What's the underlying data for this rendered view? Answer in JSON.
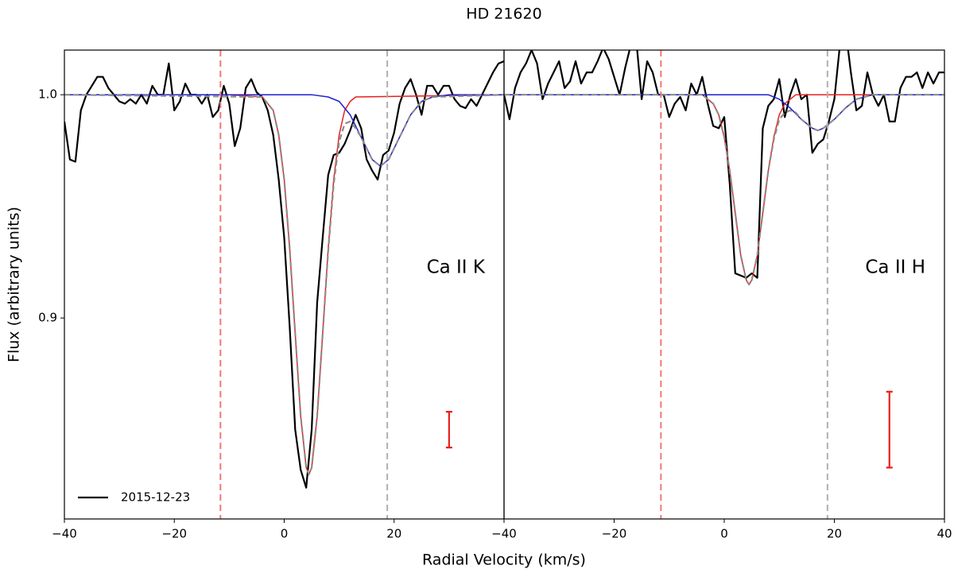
{
  "title": "HD 21620",
  "xlabel": "Radial Velocity (km/s)",
  "ylabel": "Flux (arbitrary units)",
  "chart_data": [
    {
      "type": "line",
      "annotation": "Ca II K",
      "legend": "lower left",
      "xlim": [
        -40,
        40
      ],
      "ylim": [
        0.81,
        1.02
      ],
      "xticks": [
        {
          "value": -40,
          "label": "−40"
        },
        {
          "value": -20,
          "label": "−20"
        },
        0,
        20
      ],
      "yticks": [
        0.9,
        {
          "value": 1,
          "label": "1.0"
        }
      ],
      "vlines": [
        {
          "x": -11.6,
          "color": "#f07878"
        },
        {
          "x": 18.75,
          "color": "#b0b0b0"
        }
      ],
      "errorbar": {
        "x": 30,
        "y": 0.85,
        "err": 0.008,
        "color": "#e8201e"
      },
      "series": [
        {
          "name": "2015-12-23",
          "color": "#000000",
          "width": 2.2,
          "dash": false,
          "x": [
            -40,
            -39,
            -38,
            -37,
            -36,
            -35,
            -34,
            -33,
            -32,
            -31,
            -30,
            -29,
            -28,
            -27,
            -26,
            -25,
            -24,
            -23,
            -22,
            -21,
            -20,
            -19,
            -18,
            -17,
            -16,
            -15,
            -14,
            -13,
            -12,
            -11,
            -10,
            -9,
            -8,
            -7,
            -6,
            -5,
            -4,
            -3,
            -2,
            -1,
            0,
            1,
            2,
            3,
            4,
            5,
            6,
            7,
            8,
            9,
            10,
            11,
            12,
            13,
            14,
            15,
            16,
            17,
            18,
            19,
            20,
            21,
            22,
            23,
            24,
            25,
            26,
            27,
            28,
            29,
            30,
            31,
            32,
            33,
            34,
            35,
            36,
            37,
            38,
            39,
            40
          ],
          "values": [
            0.988,
            0.971,
            0.97,
            0.993,
            1.0,
            1.004,
            1.008,
            1.008,
            1.003,
            1.0,
            0.997,
            0.996,
            0.998,
            0.996,
            1.0,
            0.996,
            1.004,
            1.0,
            1.0,
            1.014,
            0.993,
            0.997,
            1.005,
            1.0,
            1.0,
            0.996,
            1.0,
            0.99,
            0.993,
            1.004,
            0.996,
            0.977,
            0.985,
            1.003,
            1.007,
            1.001,
            0.999,
            0.993,
            0.982,
            0.962,
            0.936,
            0.896,
            0.85,
            0.832,
            0.824,
            0.85,
            0.907,
            0.936,
            0.964,
            0.973,
            0.974,
            0.978,
            0.984,
            0.991,
            0.985,
            0.971,
            0.966,
            0.962,
            0.973,
            0.975,
            0.983,
            0.996,
            1.003,
            1.007,
            1.0,
            0.991,
            1.004,
            1.004,
            1.0,
            1.004,
            1.004,
            0.998,
            0.995,
            0.994,
            0.998,
            0.995,
            1.0,
            1.005,
            1.01,
            1.014,
            1.015
          ]
        },
        {
          "color": "#e8201e",
          "width": 1.5,
          "dash": false,
          "x": [
            -40,
            -10,
            -4,
            -2,
            -1,
            0,
            1,
            2,
            3,
            4,
            4.5,
            5,
            6,
            7,
            8,
            9,
            10,
            11,
            12,
            13,
            40
          ],
          "values": [
            1.0,
            1.0,
            0.999,
            0.993,
            0.982,
            0.962,
            0.931,
            0.893,
            0.856,
            0.833,
            0.83,
            0.833,
            0.856,
            0.893,
            0.931,
            0.962,
            0.982,
            0.993,
            0.997,
            0.999,
            1.0
          ]
        },
        {
          "color": "#1f1fd0",
          "width": 1.5,
          "dash": false,
          "x": [
            -40,
            5,
            8,
            10,
            12,
            14,
            16,
            17.5,
            19,
            21,
            23,
            25,
            27,
            30,
            40
          ],
          "values": [
            1.0,
            1.0,
            0.999,
            0.997,
            0.991,
            0.981,
            0.971,
            0.968,
            0.971,
            0.981,
            0.991,
            0.997,
            0.999,
            1.0,
            1.0
          ]
        },
        {
          "color": "#8c8c8c",
          "width": 2.2,
          "dash": true,
          "x": [
            -40,
            -4,
            -2,
            -1,
            0,
            1,
            2,
            3,
            4,
            4.5,
            5,
            6,
            7,
            8,
            9,
            10,
            11,
            12,
            13,
            14,
            16,
            17.5,
            19,
            21,
            23,
            25,
            27,
            40
          ],
          "values": [
            1.0,
            0.999,
            0.993,
            0.982,
            0.962,
            0.931,
            0.893,
            0.856,
            0.833,
            0.83,
            0.833,
            0.856,
            0.893,
            0.93,
            0.96,
            0.979,
            0.987,
            0.988,
            0.985,
            0.981,
            0.971,
            0.968,
            0.971,
            0.981,
            0.991,
            0.997,
            0.999,
            1.0
          ]
        }
      ]
    },
    {
      "type": "line",
      "annotation": "Ca II H",
      "xlim": [
        -40,
        40
      ],
      "ylim": [
        0.81,
        1.02
      ],
      "xticks": [
        {
          "value": -40,
          "label": "−40"
        },
        {
          "value": -20,
          "label": "−20"
        },
        0,
        20,
        40
      ],
      "vlines": [
        {
          "x": -11.5,
          "color": "#f07878"
        },
        {
          "x": 18.75,
          "color": "#b0b0b0"
        }
      ],
      "errorbar": {
        "x": 30,
        "y": 0.85,
        "err": 0.017,
        "color": "#e8201e"
      },
      "series": [
        {
          "color": "#000000",
          "width": 2.2,
          "dash": false,
          "x": [
            -40,
            -39,
            -38,
            -37,
            -36,
            -35,
            -34,
            -33,
            -32,
            -31,
            -30,
            -29,
            -28,
            -27,
            -26,
            -25,
            -24,
            -23,
            -22,
            -21,
            -20,
            -19,
            -18,
            -17,
            -16,
            -15,
            -14,
            -13,
            -12,
            -11,
            -10,
            -9,
            -8,
            -7,
            -6,
            -5,
            -4,
            -3,
            -2,
            -1,
            0,
            1,
            2,
            3,
            4,
            5,
            6,
            7,
            8,
            9,
            10,
            11,
            12,
            13,
            14,
            15,
            16,
            17,
            18,
            19,
            20,
            21,
            22,
            23,
            24,
            25,
            26,
            27,
            28,
            29,
            30,
            31,
            32,
            33,
            34,
            35,
            36,
            37,
            38,
            39,
            40
          ],
          "values": [
            1.0,
            0.989,
            1.003,
            1.01,
            1.014,
            1.02,
            1.014,
            0.998,
            1.005,
            1.01,
            1.015,
            1.003,
            1.006,
            1.015,
            1.005,
            1.01,
            1.01,
            1.015,
            1.021,
            1.016,
            1.008,
            1.0,
            1.012,
            1.022,
            1.025,
            0.998,
            1.015,
            1.01,
            1.0,
            1.0,
            0.99,
            0.996,
            0.999,
            0.993,
            1.005,
            1.0,
            1.008,
            0.996,
            0.986,
            0.985,
            0.99,
            0.96,
            0.92,
            0.919,
            0.918,
            0.92,
            0.918,
            0.985,
            0.995,
            0.998,
            1.007,
            0.99,
            1.0,
            1.007,
            0.998,
            1.0,
            0.974,
            0.978,
            0.98,
            0.988,
            0.998,
            1.022,
            1.03,
            1.01,
            0.993,
            0.995,
            1.01,
            1.0,
            0.995,
            1.0,
            0.988,
            0.988,
            1.003,
            1.008,
            1.008,
            1.01,
            1.003,
            1.01,
            1.005,
            1.01,
            1.01
          ]
        },
        {
          "color": "#e8201e",
          "width": 1.5,
          "dash": false,
          "x": [
            -40,
            -4,
            -2,
            -1,
            0,
            1,
            2,
            3,
            4,
            4.5,
            5,
            6,
            7,
            8,
            9,
            10,
            11,
            13,
            40
          ],
          "values": [
            1.0,
            1.0,
            0.996,
            0.991,
            0.981,
            0.966,
            0.947,
            0.928,
            0.917,
            0.915,
            0.917,
            0.928,
            0.947,
            0.966,
            0.981,
            0.991,
            0.996,
            1.0,
            1.0
          ]
        },
        {
          "color": "#1f1fd0",
          "width": 1.5,
          "dash": false,
          "x": [
            -40,
            8,
            10,
            12,
            14,
            16,
            17,
            18,
            20,
            22,
            24,
            27,
            40
          ],
          "values": [
            1.0,
            1.0,
            0.998,
            0.994,
            0.989,
            0.985,
            0.984,
            0.985,
            0.989,
            0.994,
            0.998,
            1.0,
            1.0
          ]
        },
        {
          "color": "#8c8c8c",
          "width": 2.2,
          "dash": true,
          "x": [
            -40,
            -4,
            -2,
            -1,
            0,
            1,
            2,
            3,
            4,
            4.5,
            5,
            6,
            7,
            8,
            9,
            10,
            11,
            12,
            13,
            14,
            16,
            17,
            18,
            20,
            22,
            24,
            27,
            40
          ],
          "values": [
            1.0,
            1.0,
            0.996,
            0.991,
            0.981,
            0.966,
            0.947,
            0.928,
            0.917,
            0.915,
            0.917,
            0.928,
            0.947,
            0.966,
            0.98,
            0.989,
            0.992,
            0.993,
            0.992,
            0.989,
            0.985,
            0.984,
            0.985,
            0.989,
            0.994,
            0.998,
            1.0,
            1.0
          ]
        }
      ]
    }
  ]
}
